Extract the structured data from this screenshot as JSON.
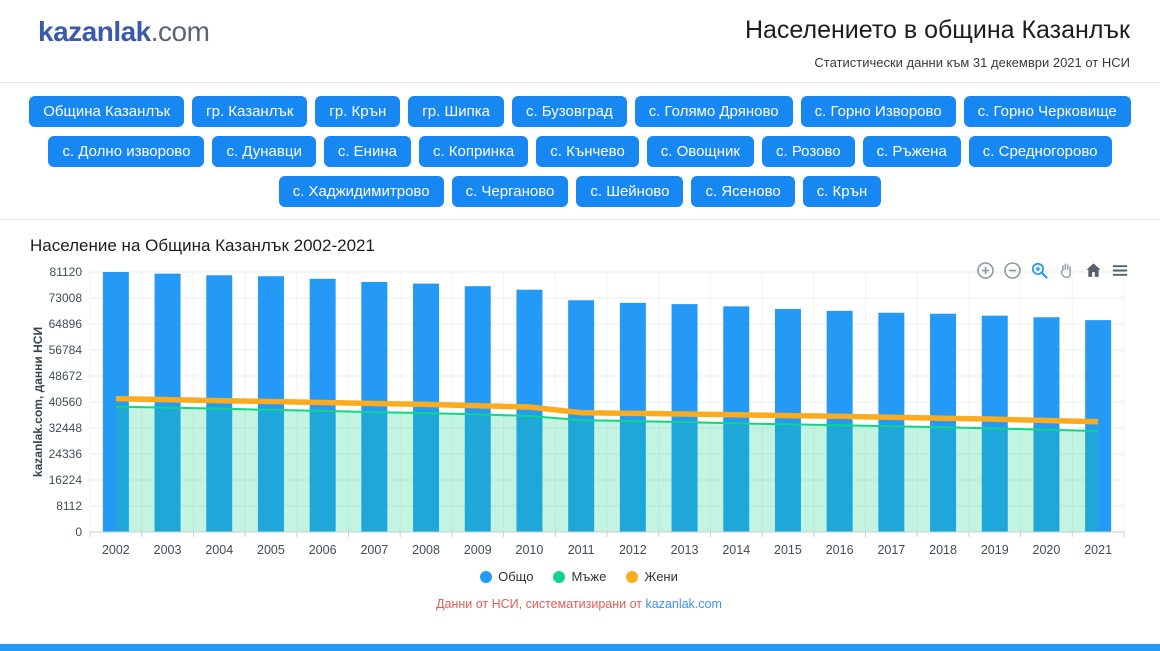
{
  "header": {
    "logo_brand": "kazanlak",
    "logo_tld": ".com",
    "title": "Населението в община Казанлък",
    "subtitle": "Статистически данни към 31 декември 2021 от НСИ"
  },
  "nav": {
    "buttons": [
      "Община Казанлък",
      "гр. Казанлък",
      "гр. Крън",
      "гр. Шипка",
      "с. Бузовград",
      "с. Голямо Дряново",
      "с. Горно Изворово",
      "с. Горно Черковище",
      "с. Долно изворово",
      "с. Дунавци",
      "с. Енина",
      "с. Копринка",
      "с. Кънчево",
      "с. Овощник",
      "с. Розово",
      "с. Ръжена",
      "с. Средногорово",
      "с. Хаджидимитрово",
      "с. Черганово",
      "с. Шейново",
      "с. Ясеново",
      "с. Крън"
    ]
  },
  "chart": {
    "title": "Население на Община Казанлък 2002-2021",
    "toolbar_icons": [
      "zoom-in",
      "zoom-out",
      "selection-zoom",
      "pan",
      "reset-view",
      "menu"
    ],
    "toolbar_active_icon": "selection-zoom"
  },
  "chart_data": {
    "type": "bar",
    "title": "Население на Община Казанлък 2002-2021",
    "categories": [
      "2002",
      "2003",
      "2004",
      "2005",
      "2006",
      "2007",
      "2008",
      "2009",
      "2010",
      "2011",
      "2012",
      "2013",
      "2014",
      "2015",
      "2016",
      "2017",
      "2018",
      "2019",
      "2020",
      "2021"
    ],
    "series": [
      {
        "name": "Общо",
        "type": "bar",
        "color": "#2499f5",
        "values": [
          81120,
          80600,
          80100,
          79800,
          79000,
          78000,
          77500,
          76700,
          75600,
          72300,
          71500,
          71100,
          70400,
          69600,
          69000,
          68400,
          68100,
          67500,
          67000,
          66100
        ]
      },
      {
        "name": "Мъже",
        "type": "area",
        "color": "#10d586",
        "fill": "rgba(16,213,134,0.25)",
        "values": [
          39100,
          38800,
          38500,
          38100,
          37800,
          37400,
          37100,
          36700,
          36200,
          34900,
          34600,
          34300,
          33900,
          33600,
          33300,
          33000,
          32700,
          32300,
          31900,
          31500
        ]
      },
      {
        "name": "Жени",
        "type": "line",
        "color": "#fbab1e",
        "values": [
          41600,
          41300,
          41000,
          40700,
          40400,
          40100,
          39800,
          39400,
          39000,
          37200,
          37000,
          36800,
          36600,
          36300,
          36100,
          35800,
          35500,
          35200,
          34800,
          34400
        ]
      }
    ],
    "xlabel": "",
    "ylabel": "kazanlak.com, данни НСИ",
    "ylim": [
      0,
      81120
    ],
    "yticks": [
      0,
      8112,
      16224,
      24336,
      32448,
      40560,
      48672,
      56784,
      64896,
      73008,
      81120
    ],
    "grid": true,
    "legend_position": "bottom"
  },
  "footer": {
    "text": "Данни от НСИ, систематизирани от ",
    "link": "kazanlak.com"
  },
  "colors": {
    "button_blue": "#1787f2",
    "bar_blue": "#2499f5",
    "men_green": "#10d586",
    "women_orange": "#fbab1e",
    "footer_red": "#e05d55",
    "link_blue": "#3d8ef5",
    "logo_blue": "#3a5ba9"
  }
}
